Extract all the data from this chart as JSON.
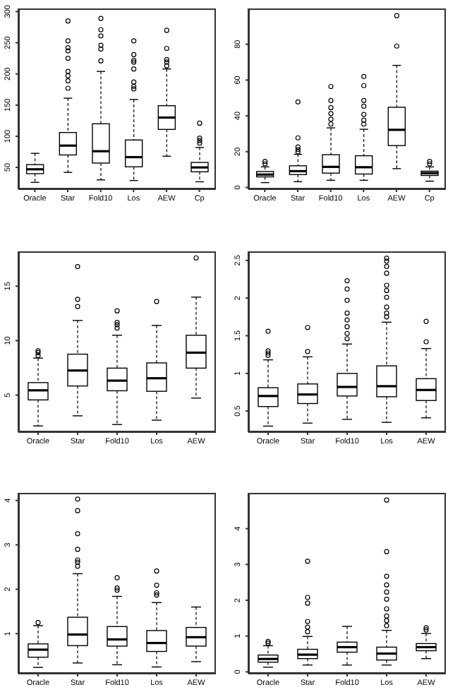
{
  "chart_data": [
    {
      "type": "box",
      "categories": [
        "Oracle",
        "Star",
        "Fold10",
        "Los",
        "AEW",
        "Cp"
      ],
      "ylim": [
        15,
        305
      ],
      "yticks": [
        50,
        100,
        150,
        200,
        250,
        300
      ],
      "boxes": [
        {
          "low": 26,
          "q1": 40,
          "median": 47,
          "q3": 54.5,
          "high": 72.6
        },
        {
          "low": 42,
          "q1": 70,
          "median": 85,
          "q3": 106,
          "high": 161,
          "outliers": [
            177,
            189,
            197,
            204,
            225,
            237,
            242,
            253,
            285
          ]
        },
        {
          "low": 30,
          "q1": 57,
          "median": 76,
          "q3": 120,
          "high": 204,
          "outliers": [
            221,
            240,
            246,
            261,
            271,
            289
          ]
        },
        {
          "low": 29,
          "q1": 51,
          "median": 66.5,
          "q3": 94,
          "high": 159,
          "outliers": [
            176,
            180,
            187,
            208,
            219,
            222,
            231,
            253
          ]
        },
        {
          "low": 68,
          "q1": 111,
          "median": 130,
          "q3": 149,
          "high": 208,
          "outliers": [
            213,
            219,
            223,
            241,
            270
          ]
        },
        {
          "low": 27,
          "q1": 43,
          "median": 50,
          "q3": 58,
          "high": 82,
          "outliers": [
            89,
            93,
            97,
            121
          ]
        }
      ]
    },
    {
      "type": "box",
      "categories": [
        "Oracle",
        "Star",
        "Fold10",
        "Los",
        "AEW",
        "Cp"
      ],
      "ylim": [
        -1,
        100
      ],
      "yticks": [
        0,
        20,
        40,
        60,
        80
      ],
      "boxes": [
        {
          "low": 2.7,
          "q1": 5.9,
          "median": 7.2,
          "q3": 8.9,
          "high": 11.5,
          "outliers": [
            13.2,
            14.5
          ]
        },
        {
          "low": 3.2,
          "q1": 7.2,
          "median": 9.1,
          "q3": 12.1,
          "high": 18.5,
          "outliers": [
            19.9,
            21.2,
            22.6,
            27.7,
            47.8
          ]
        },
        {
          "low": 4,
          "q1": 8,
          "median": 11.5,
          "q3": 18.3,
          "high": 33.3,
          "outliers": [
            35.4,
            38.1,
            41.3,
            44.6,
            48.6,
            56.4
          ]
        },
        {
          "low": 4,
          "q1": 7.5,
          "median": 11.3,
          "q3": 17.7,
          "high": 32.5,
          "outliers": [
            35.4,
            37.6,
            40.8,
            45.4,
            48.6,
            56.9,
            62
          ]
        },
        {
          "low": 10.5,
          "q1": 23.4,
          "median": 32.2,
          "q3": 44.8,
          "high": 68.2,
          "outliers": [
            79,
            96
          ]
        },
        {
          "low": 3.5,
          "q1": 6.7,
          "median": 8,
          "q3": 9.1,
          "high": 11.5,
          "outliers": [
            13.2,
            14.5
          ]
        }
      ]
    },
    {
      "type": "box",
      "categories": [
        "Oracle",
        "Star",
        "Fold10",
        "Los",
        "AEW"
      ],
      "ylim": [
        1.6,
        18.2
      ],
      "yticks": [
        5,
        10,
        15
      ],
      "boxes": [
        {
          "low": 2.17,
          "q1": 4.56,
          "median": 5.44,
          "q3": 6.15,
          "high": 8.4,
          "outliers": [
            8.63,
            8.9,
            9.07
          ]
        },
        {
          "low": 3.1,
          "q1": 5.84,
          "median": 7.26,
          "q3": 8.76,
          "high": 11.86,
          "outliers": [
            13.14,
            13.8,
            16.8
          ]
        },
        {
          "low": 2.3,
          "q1": 5.4,
          "median": 6.33,
          "q3": 7.48,
          "high": 10.5,
          "outliers": [
            11.15,
            11.46,
            11.68,
            12.74
          ]
        },
        {
          "low": 2.7,
          "q1": 5.35,
          "median": 6.55,
          "q3": 7.96,
          "high": 11.4,
          "outliers": [
            13.6
          ]
        },
        {
          "low": 4.73,
          "q1": 7.48,
          "median": 8.9,
          "q3": 10.5,
          "high": 14,
          "outliers": [
            17.6
          ]
        }
      ]
    },
    {
      "type": "box",
      "categories": [
        "Oracle",
        "Star",
        "Fold10",
        "Los",
        "AEW"
      ],
      "ylim": [
        0.22,
        2.62
      ],
      "yticks": [
        0.5,
        1.0,
        1.5,
        2.0,
        2.5
      ],
      "boxes": [
        {
          "low": 0.3,
          "q1": 0.56,
          "median": 0.7,
          "q3": 0.81,
          "high": 1.18,
          "outliers": [
            1.24,
            1.27,
            1.3,
            1.56
          ]
        },
        {
          "low": 0.34,
          "q1": 0.6,
          "median": 0.72,
          "q3": 0.86,
          "high": 1.22,
          "outliers": [
            1.29,
            1.61
          ]
        },
        {
          "low": 0.39,
          "q1": 0.7,
          "median": 0.82,
          "q3": 1.0,
          "high": 1.39,
          "outliers": [
            1.46,
            1.53,
            1.62,
            1.71,
            1.8,
            1.97,
            2.12,
            2.23
          ]
        },
        {
          "low": 0.35,
          "q1": 0.69,
          "median": 0.83,
          "q3": 1.1,
          "high": 1.68,
          "outliers": [
            1.75,
            1.8,
            1.88,
            2.01,
            2.1,
            2.17,
            2.33,
            2.42,
            2.49,
            2.53
          ]
        },
        {
          "low": 0.41,
          "q1": 0.64,
          "median": 0.78,
          "q3": 0.93,
          "high": 1.33,
          "outliers": [
            1.42,
            1.69
          ]
        }
      ]
    },
    {
      "type": "box",
      "categories": [
        "Oracle",
        "Star",
        "Fold10",
        "Los",
        "AEW"
      ],
      "ylim": [
        0.1,
        4.17
      ],
      "yticks": [
        1,
        2,
        3,
        4
      ],
      "boxes": [
        {
          "low": 0.24,
          "q1": 0.47,
          "median": 0.64,
          "q3": 0.77,
          "high": 1.18,
          "outliers": [
            1.25
          ]
        },
        {
          "low": 0.34,
          "q1": 0.73,
          "median": 0.98,
          "q3": 1.37,
          "high": 2.35,
          "outliers": [
            2.52,
            2.61,
            2.66,
            2.9,
            3.25,
            3.77,
            4.03
          ]
        },
        {
          "low": 0.3,
          "q1": 0.72,
          "median": 0.87,
          "q3": 1.16,
          "high": 1.84,
          "outliers": [
            1.98,
            2.03,
            2.26
          ]
        },
        {
          "low": 0.25,
          "q1": 0.6,
          "median": 0.79,
          "q3": 1.07,
          "high": 1.7,
          "outliers": [
            1.87,
            1.92,
            2.09,
            2.41
          ]
        },
        {
          "low": 0.37,
          "q1": 0.72,
          "median": 0.92,
          "q3": 1.14,
          "high": 1.6
        }
      ]
    },
    {
      "type": "box",
      "categories": [
        "Oracle",
        "Star",
        "Fold10",
        "Los",
        "AEW"
      ],
      "ylim": [
        -0.05,
        5.0
      ],
      "yticks": [
        0,
        1,
        2,
        3,
        4
      ],
      "boxes": [
        {
          "low": 0.13,
          "q1": 0.27,
          "median": 0.36,
          "q3": 0.47,
          "high": 0.73,
          "outliers": [
            0.8,
            0.85
          ]
        },
        {
          "low": 0.19,
          "q1": 0.37,
          "median": 0.48,
          "q3": 0.63,
          "high": 0.99,
          "outliers": [
            1.12,
            1.25,
            1.41,
            1.92,
            2.08,
            3.09
          ]
        },
        {
          "low": 0.19,
          "q1": 0.55,
          "median": 0.69,
          "q3": 0.83,
          "high": 1.27
        },
        {
          "low": 0.19,
          "q1": 0.33,
          "median": 0.51,
          "q3": 0.69,
          "high": 1.16,
          "outliers": [
            1.29,
            1.43,
            1.56,
            1.76,
            2.03,
            2.23,
            2.43,
            2.67,
            3.36,
            4.8
          ]
        },
        {
          "low": 0.37,
          "q1": 0.59,
          "median": 0.69,
          "q3": 0.79,
          "high": 1.07,
          "outliers": [
            1.17,
            1.23
          ]
        }
      ]
    }
  ]
}
